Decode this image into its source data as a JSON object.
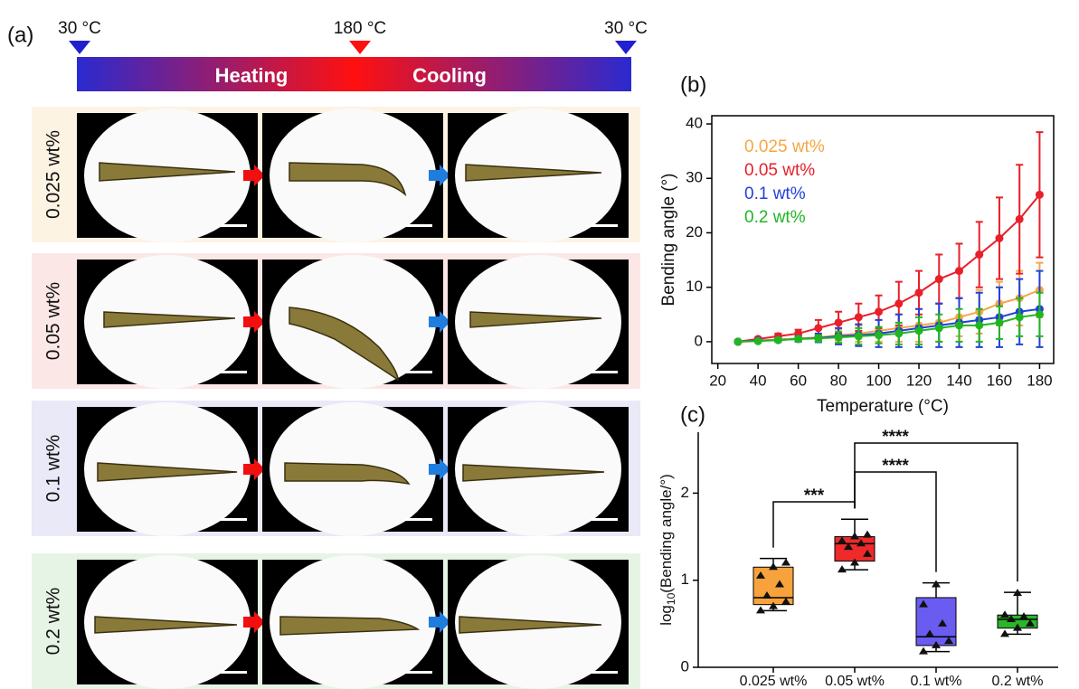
{
  "panel_a": {
    "label": "(a)",
    "temps": [
      "30 °C",
      "180 °C",
      "30 °C"
    ],
    "heating": "Heating",
    "cooling": "Cooling",
    "rows": [
      "0.025 wt%",
      "0.05 wt%",
      "0.1 wt%",
      "0.2 wt%"
    ]
  },
  "chart_data": [
    {
      "type": "line",
      "panel": "(b)",
      "xlabel": "Temperature (°C)",
      "ylabel": "Bending angle (°)",
      "x": [
        30,
        40,
        50,
        60,
        70,
        80,
        90,
        100,
        110,
        120,
        130,
        140,
        150,
        160,
        170,
        180
      ],
      "xlim": [
        17,
        187
      ],
      "xticks": [
        20,
        40,
        60,
        80,
        100,
        120,
        140,
        160,
        180
      ],
      "ylim": [
        -4,
        41.5
      ],
      "yticks": [
        0,
        10,
        20,
        30,
        40
      ],
      "series": [
        {
          "name": "0.025 wt%",
          "color": "#f5a742",
          "values": [
            0,
            0.2,
            0.4,
            0.6,
            0.8,
            1.2,
            1.5,
            2,
            2.5,
            3,
            3.5,
            4.5,
            5.5,
            7,
            8,
            9.5
          ],
          "errors": [
            0,
            0.2,
            0.3,
            0.4,
            0.6,
            1,
            1.5,
            2,
            2.5,
            3,
            3.5,
            3.5,
            4,
            4,
            5,
            5
          ]
        },
        {
          "name": "0.05 wt%",
          "color": "#e8202a",
          "values": [
            0,
            0.5,
            1,
            1.5,
            2.5,
            3.5,
            4.5,
            5.5,
            7,
            9,
            11.5,
            13,
            16,
            19,
            22.5,
            27
          ],
          "errors": [
            0,
            0.3,
            0.5,
            0.7,
            1.5,
            2,
            2.5,
            3,
            4,
            4,
            4.5,
            5,
            6,
            7.5,
            10,
            11.5
          ]
        },
        {
          "name": "0.1 wt%",
          "color": "#2340d8",
          "values": [
            0,
            0.2,
            0.3,
            0.5,
            0.7,
            1,
            1.2,
            1.5,
            2,
            2.5,
            3,
            3.5,
            4,
            4.5,
            5.5,
            6
          ],
          "errors": [
            0,
            0.2,
            0.3,
            0.5,
            0.8,
            1.5,
            2,
            2.5,
            3,
            3.5,
            4,
            4.5,
            5,
            5.5,
            6,
            7
          ]
        },
        {
          "name": "0.2 wt%",
          "color": "#22b522",
          "values": [
            0,
            0.1,
            0.3,
            0.5,
            0.6,
            0.8,
            1,
            1.2,
            1.5,
            2,
            2.5,
            3,
            3,
            3.5,
            4.5,
            5
          ],
          "errors": [
            0,
            0.2,
            0.3,
            0.4,
            0.6,
            1,
            1.5,
            1.5,
            2,
            2.5,
            2.5,
            3,
            3,
            3,
            3.5,
            4
          ]
        }
      ]
    },
    {
      "type": "box",
      "panel": "(c)",
      "ylabel_parts": [
        "log",
        "10",
        "(Bending angle/°)"
      ],
      "categories": [
        "0.025 wt%",
        "0.05 wt%",
        "0.1 wt%",
        "0.2 wt%"
      ],
      "colors": [
        "#f7a23c",
        "#ee2a2a",
        "#6a5cf0",
        "#2bb52b"
      ],
      "ylim": [
        0,
        2.7
      ],
      "yticks": [
        0,
        1,
        2
      ],
      "whisker_low": [
        0.65,
        1.12,
        0.18,
        0.38
      ],
      "q1": [
        0.72,
        1.22,
        0.25,
        0.45
      ],
      "median": [
        0.8,
        1.42,
        0.35,
        0.55
      ],
      "q3": [
        1.15,
        1.5,
        0.8,
        0.6
      ],
      "whisker_high": [
        1.25,
        1.7,
        0.97,
        0.86
      ],
      "points": [
        [
          0.65,
          0.7,
          0.75,
          0.82,
          0.95,
          1.05,
          1.15,
          1.2
        ],
        [
          1.12,
          1.2,
          1.3,
          1.38,
          1.42,
          1.45,
          1.5,
          1.52
        ],
        [
          0.18,
          0.25,
          0.3,
          0.38,
          0.5,
          0.72,
          0.95
        ],
        [
          0.38,
          0.45,
          0.5,
          0.55,
          0.58,
          0.6,
          0.85
        ]
      ],
      "annotations": [
        {
          "text": "***",
          "from": 0,
          "to": 1
        },
        {
          "text": "****",
          "from": 1,
          "to": 2
        },
        {
          "text": "****",
          "from": 1,
          "to": 3
        }
      ]
    }
  ]
}
